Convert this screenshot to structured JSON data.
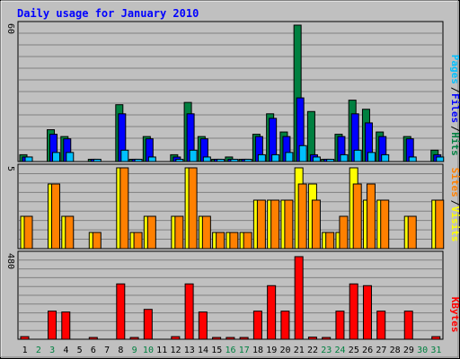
{
  "title": "Daily usage for January 2010",
  "colors": {
    "hits": "#008040",
    "files": "#0000ff",
    "pages": "#00c0ff",
    "visits": "#ffff00",
    "sites": "#ff8000",
    "kbytes": "#ff0000",
    "plot_bg": "#c0c0c0",
    "title": "#0000ff",
    "weekend_day": "#008040"
  },
  "chart_data": [
    {
      "type": "bar",
      "panel": "hits-files-pages",
      "categories": [
        "1",
        "2",
        "3",
        "4",
        "5",
        "6",
        "7",
        "8",
        "9",
        "10",
        "11",
        "12",
        "13",
        "14",
        "15",
        "16",
        "17",
        "18",
        "19",
        "20",
        "21",
        "22",
        "23",
        "24",
        "25",
        "26",
        "27",
        "28",
        "29",
        "30",
        "31"
      ],
      "weekend_days": [
        "2",
        "3",
        "9",
        "10",
        "16",
        "17",
        "23",
        "24",
        "30",
        "31"
      ],
      "ymax": 60,
      "ymax_label": "60",
      "legend": [
        "Pages",
        "/",
        "Files",
        "/",
        "Hits"
      ],
      "series": [
        {
          "name": "Hits",
          "color": "#008040",
          "values": [
            3,
            0,
            14,
            11,
            0,
            1,
            0,
            25,
            1,
            11,
            0,
            3,
            26,
            11,
            1,
            2,
            1,
            12,
            21,
            13,
            60,
            22,
            1,
            12,
            27,
            23,
            13,
            0,
            11,
            0,
            5
          ]
        },
        {
          "name": "Files",
          "color": "#0000ff",
          "values": [
            2,
            0,
            12,
            10,
            0,
            1,
            0,
            21,
            1,
            10,
            0,
            2,
            21,
            10,
            1,
            1,
            1,
            11,
            19,
            11,
            28,
            3,
            1,
            11,
            21,
            17,
            11,
            0,
            10,
            0,
            3
          ]
        },
        {
          "name": "Pages",
          "color": "#00c0ff",
          "values": [
            2,
            0,
            4,
            4,
            0,
            1,
            0,
            5,
            1,
            2,
            0,
            1,
            5,
            2,
            1,
            1,
            1,
            3,
            3,
            4,
            7,
            2,
            1,
            3,
            5,
            4,
            3,
            0,
            2,
            0,
            2
          ]
        }
      ],
      "grid": true
    },
    {
      "type": "bar",
      "panel": "visits-sites",
      "categories": [
        "1",
        "2",
        "3",
        "4",
        "5",
        "6",
        "7",
        "8",
        "9",
        "10",
        "11",
        "12",
        "13",
        "14",
        "15",
        "16",
        "17",
        "18",
        "19",
        "20",
        "21",
        "22",
        "23",
        "24",
        "25",
        "26",
        "27",
        "28",
        "29",
        "30",
        "31"
      ],
      "ymax": 5,
      "ymax_label": "5",
      "legend": [
        "Sites",
        "/",
        "Visits"
      ],
      "series": [
        {
          "name": "Visits",
          "color": "#ffff00",
          "values": [
            2,
            0,
            4,
            2,
            0,
            1,
            0,
            5,
            1,
            2,
            0,
            2,
            5,
            2,
            1,
            1,
            1,
            3,
            3,
            3,
            5,
            4,
            1,
            1,
            5,
            3,
            3,
            0,
            2,
            0,
            3
          ]
        },
        {
          "name": "Sites",
          "color": "#ff8000",
          "values": [
            2,
            0,
            4,
            2,
            0,
            1,
            0,
            5,
            1,
            2,
            0,
            2,
            5,
            2,
            1,
            1,
            1,
            3,
            3,
            3,
            4,
            3,
            1,
            2,
            4,
            4,
            3,
            0,
            2,
            0,
            3
          ]
        }
      ],
      "grid": true
    },
    {
      "type": "bar",
      "panel": "kbytes",
      "categories": [
        "1",
        "2",
        "3",
        "4",
        "5",
        "6",
        "7",
        "8",
        "9",
        "10",
        "11",
        "12",
        "13",
        "14",
        "15",
        "16",
        "17",
        "18",
        "19",
        "20",
        "21",
        "22",
        "23",
        "24",
        "25",
        "26",
        "27",
        "28",
        "29",
        "30",
        "31"
      ],
      "ymax": 480,
      "ymax_label": "480",
      "legend": [
        "KBytes"
      ],
      "series": [
        {
          "name": "KBytes",
          "color": "#ff0000",
          "values": [
            15,
            0,
            160,
            155,
            0,
            10,
            0,
            315,
            5,
            170,
            0,
            15,
            315,
            155,
            8,
            8,
            8,
            160,
            305,
            160,
            470,
            12,
            10,
            160,
            315,
            305,
            160,
            0,
            160,
            0,
            15
          ]
        }
      ],
      "grid": true
    }
  ]
}
